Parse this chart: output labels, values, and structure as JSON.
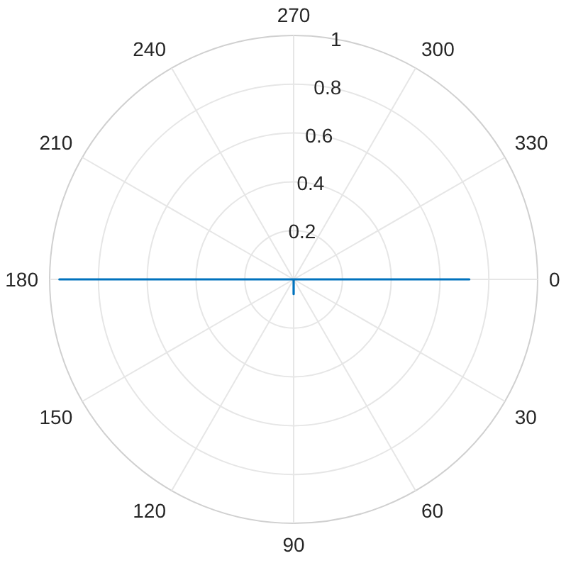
{
  "chart_data": {
    "type": "radar",
    "categories": [
      "270",
      "300",
      "330",
      "0",
      "30",
      "60",
      "90",
      "120",
      "150",
      "180",
      "210",
      "240"
    ],
    "series": [
      {
        "color": "#0072bd",
        "values": [
          0,
          0,
          0,
          0.72,
          0,
          0,
          0.06,
          0,
          0,
          0.96,
          0,
          0
        ]
      }
    ],
    "ylim": [
      0,
      1
    ],
    "yticks": [
      0.2,
      0.4,
      0.6,
      0.8,
      1
    ],
    "grid": true,
    "line_style": "solid"
  }
}
